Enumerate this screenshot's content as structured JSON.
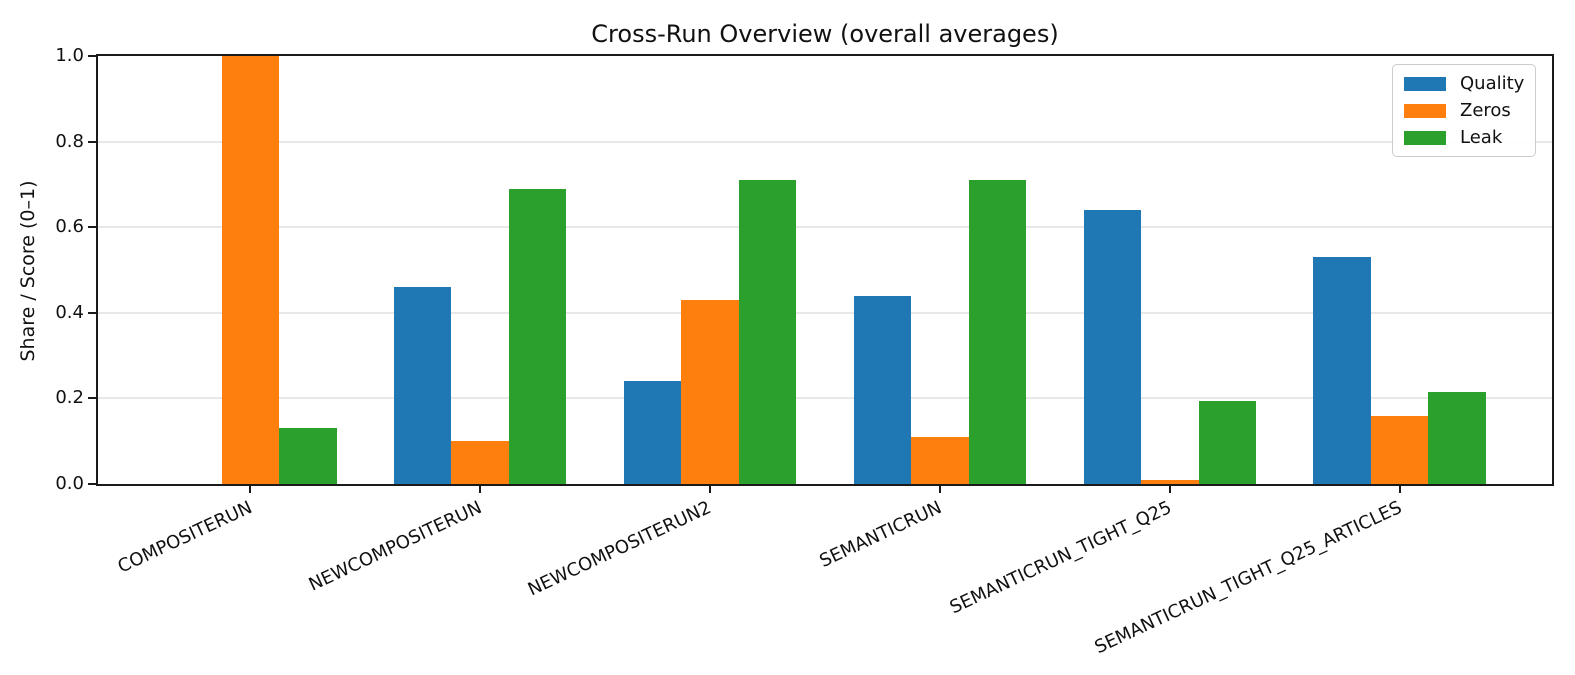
{
  "chart_data": {
    "type": "bar",
    "title": "Cross-Run Overview (overall averages)",
    "xlabel": "",
    "ylabel": "Share / Score (0–1)",
    "categories": [
      "COMPOSITERUN",
      "NEWCOMPOSITERUN",
      "NEWCOMPOSITERUN2",
      "SEMANTICRUN",
      "SEMANTICRUN_TIGHT_Q25",
      "SEMANTICRUN_TIGHT_Q25_ARTICLES"
    ],
    "series": [
      {
        "name": "Quality",
        "color": "#1f77b4",
        "values": [
          0.0,
          0.46,
          0.24,
          0.44,
          0.64,
          0.53
        ]
      },
      {
        "name": "Zeros",
        "color": "#ff7f0e",
        "values": [
          1.0,
          0.1,
          0.43,
          0.11,
          0.01,
          0.16
        ]
      },
      {
        "name": "Leak",
        "color": "#2ca02c",
        "values": [
          0.13,
          0.69,
          0.71,
          0.71,
          0.195,
          0.215
        ]
      }
    ],
    "ylim": [
      0.0,
      1.0
    ],
    "yticks": [
      "0.0",
      "0.2",
      "0.4",
      "0.6",
      "0.8",
      "1.0"
    ],
    "grid": true,
    "legend_position": "upper right"
  }
}
